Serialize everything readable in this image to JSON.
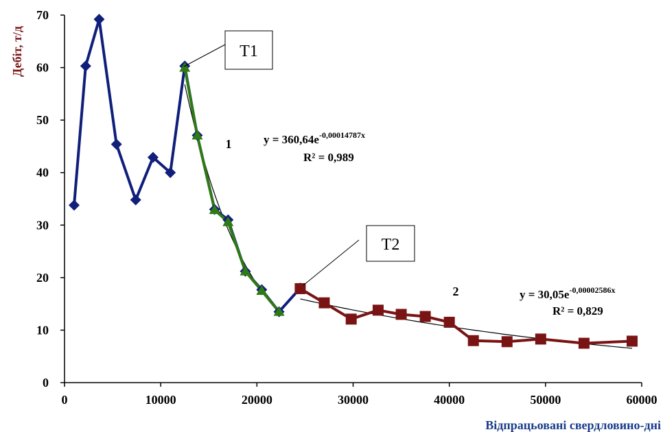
{
  "chart_data": {
    "type": "line",
    "xlabel": "Відпрацьовані свердловино-дні",
    "ylabel": "Дебіт, т/д",
    "xlim": [
      0,
      60000
    ],
    "ylim": [
      0,
      70
    ],
    "x_ticks": [
      "0",
      "10000",
      "20000",
      "30000",
      "40000",
      "50000",
      "60000"
    ],
    "y_ticks": [
      "0",
      "10",
      "20",
      "30",
      "40",
      "50",
      "60",
      "70"
    ],
    "grid": false,
    "series": [
      {
        "color": "#0f1f7a",
        "marker": "diamond",
        "points": [
          [
            1000,
            33.8
          ],
          [
            2200,
            60.3
          ],
          [
            3600,
            69.2
          ],
          [
            5400,
            45.4
          ],
          [
            7400,
            34.8
          ],
          [
            9200,
            42.9
          ],
          [
            11000,
            40.0
          ],
          [
            12500,
            60.3
          ],
          [
            13800,
            47.1
          ],
          [
            15600,
            33.0
          ],
          [
            17000,
            31.0
          ],
          [
            18800,
            21.2
          ],
          [
            20500,
            17.7
          ],
          [
            22300,
            13.5
          ],
          [
            24500,
            18.0
          ]
        ]
      },
      {
        "color": "#2f7a14",
        "marker": "triangle",
        "points": [
          [
            12500,
            60.0
          ],
          [
            13800,
            47.1
          ],
          [
            15600,
            32.9
          ],
          [
            17000,
            30.6
          ],
          [
            18800,
            21.2
          ],
          [
            20500,
            17.5
          ],
          [
            22300,
            13.5
          ]
        ]
      },
      {
        "color": "#7a1414",
        "marker": "square",
        "points": [
          [
            24500,
            17.9
          ],
          [
            27000,
            15.2
          ],
          [
            29800,
            12.1
          ],
          [
            32600,
            13.8
          ],
          [
            35000,
            13.0
          ],
          [
            37500,
            12.6
          ],
          [
            40000,
            11.5
          ],
          [
            42500,
            8.0
          ],
          [
            46000,
            7.8
          ],
          [
            49500,
            8.3
          ],
          [
            54000,
            7.5
          ],
          [
            59000,
            7.9
          ]
        ]
      }
    ],
    "trendlines": [
      {
        "a": 360.64,
        "b": -0.00014787,
        "x_range": [
          12500,
          22300
        ]
      },
      {
        "a": 30.05,
        "b": -2.586e-05,
        "x_range": [
          24500,
          59000
        ]
      }
    ],
    "annotations": {
      "t1_label": "T1",
      "t2_label": "T2",
      "region1_label": "1",
      "region2_label": "2",
      "eq1_main": "y = 360,64e",
      "eq1_exp": "-0,00014787x",
      "eq1_r2": "R² = 0,989",
      "eq2_main": "y = 30,05e",
      "eq2_exp": "-0,00002586x",
      "eq2_r2": "R² = 0,829"
    }
  }
}
